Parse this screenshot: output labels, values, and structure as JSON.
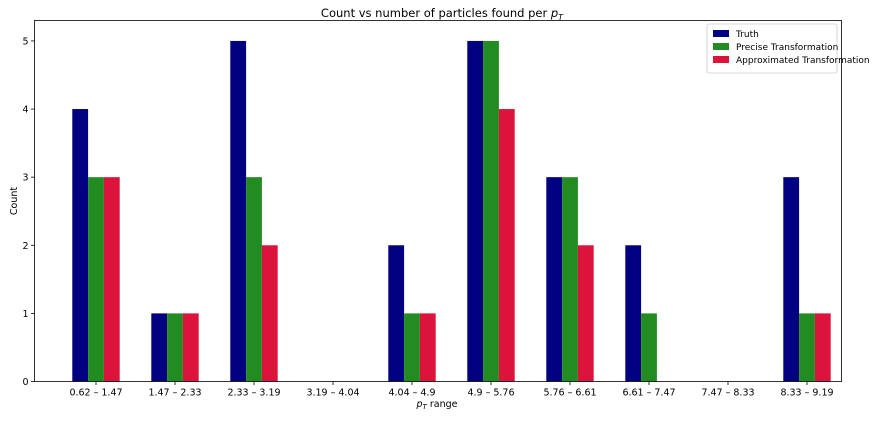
{
  "chart_data": {
    "type": "bar",
    "title_main": "Count vs number of particles found per ",
    "title_math": "p",
    "title_sub": "T",
    "xlabel_math": "p",
    "xlabel_sub": "T",
    "xlabel_rest": " range",
    "ylabel": "Count",
    "categories": [
      "0.62 – 1.47",
      "1.47 – 2.33",
      "2.33 – 3.19",
      "3.19 – 4.04",
      "4.04 – 4.9",
      "4.9 – 5.76",
      "5.76 – 6.61",
      "6.61 – 7.47",
      "7.47 – 8.33",
      "8.33 – 9.19"
    ],
    "series": [
      {
        "name": "Truth",
        "color": "#000080",
        "values": [
          4,
          1,
          5,
          0,
          2,
          5,
          3,
          2,
          0,
          3
        ]
      },
      {
        "name": "Precise Transformation",
        "color": "#228B22",
        "values": [
          3,
          1,
          3,
          0,
          1,
          5,
          3,
          1,
          0,
          1
        ]
      },
      {
        "name": "Approximated Transformation",
        "color": "#DC143C",
        "values": [
          3,
          1,
          2,
          0,
          1,
          4,
          2,
          0,
          0,
          1
        ]
      }
    ],
    "ylim": [
      0,
      5.3
    ],
    "yticks": [
      0,
      1,
      2,
      3,
      4,
      5
    ],
    "grid": false,
    "legend_position": "top-right"
  }
}
